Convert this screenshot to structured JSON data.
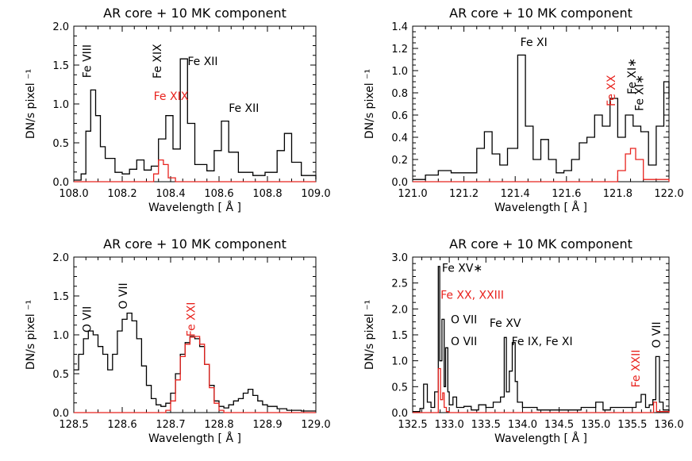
{
  "chart_data": [
    {
      "type": "line",
      "title": "AR core + 10 MK component",
      "xlabel": "Wavelength [ Å ]",
      "ylabel": "DN/s  pixel ⁻¹",
      "xlim": [
        108.0,
        109.0
      ],
      "ylim": [
        0.0,
        2.0
      ],
      "xticks": [
        108.0,
        108.2,
        108.4,
        108.6,
        108.8,
        109.0
      ],
      "xtick_labels": [
        "108.0",
        "108.2",
        "108.4",
        "108.6",
        "108.8",
        "109.0"
      ],
      "yticks": [
        0.0,
        0.5,
        1.0,
        1.5,
        2.0
      ],
      "ytick_labels": [
        "0.0",
        "0.5",
        "1.0",
        "1.5",
        "2.0"
      ],
      "series": [
        {
          "color": "#000000",
          "x": [
            108.0,
            108.03,
            108.05,
            108.07,
            108.09,
            108.11,
            108.13,
            108.17,
            108.2,
            108.23,
            108.26,
            108.29,
            108.32,
            108.35,
            108.38,
            108.41,
            108.44,
            108.47,
            108.5,
            108.55,
            108.58,
            108.61,
            108.64,
            108.68,
            108.74,
            108.79,
            108.84,
            108.87,
            108.9,
            108.94,
            109.0
          ],
          "y": [
            0.02,
            0.1,
            0.65,
            1.18,
            0.85,
            0.45,
            0.3,
            0.12,
            0.1,
            0.16,
            0.28,
            0.15,
            0.2,
            0.55,
            0.85,
            0.42,
            1.58,
            0.75,
            0.22,
            0.14,
            0.4,
            0.78,
            0.38,
            0.12,
            0.08,
            0.12,
            0.4,
            0.62,
            0.25,
            0.08,
            0.03
          ]
        },
        {
          "color": "#e8231e",
          "x": [
            108.0,
            108.3,
            108.33,
            108.35,
            108.37,
            108.39,
            108.42,
            109.0
          ],
          "y": [
            0.0,
            0.0,
            0.1,
            0.28,
            0.22,
            0.05,
            0.0,
            0.0
          ]
        }
      ],
      "annotations": [
        {
          "text": "Fe VIII",
          "x": 108.07,
          "y": 1.55,
          "rotate": true,
          "color": "#000000"
        },
        {
          "text": "Fe XIX",
          "x": 108.36,
          "y": 1.55,
          "rotate": true,
          "color": "#000000"
        },
        {
          "text": "Fe XII",
          "x": 108.47,
          "y": 1.5,
          "rotate": false,
          "color": "#000000"
        },
        {
          "text": "Fe XIX",
          "x": 108.33,
          "y": 1.05,
          "rotate": false,
          "color": "#e8231e"
        },
        {
          "text": "Fe XII",
          "x": 108.64,
          "y": 0.9,
          "rotate": false,
          "color": "#000000"
        }
      ]
    },
    {
      "type": "line",
      "title": "AR core + 10 MK component",
      "xlabel": "Wavelength [ Å ]",
      "ylabel": "DN/s  pixel ⁻¹",
      "xlim": [
        121.0,
        122.0
      ],
      "ylim": [
        0.0,
        1.4
      ],
      "xticks": [
        121.0,
        121.2,
        121.4,
        121.6,
        121.8,
        122.0
      ],
      "xtick_labels": [
        "121.0",
        "121.2",
        "121.4",
        "121.6",
        "121.8",
        "122.0"
      ],
      "yticks": [
        0.0,
        0.2,
        0.4,
        0.6,
        0.8,
        1.0,
        1.2,
        1.4
      ],
      "ytick_labels": [
        "0.0",
        "0.2",
        "0.4",
        "0.6",
        "0.8",
        "1.0",
        "1.2",
        "1.4"
      ],
      "series": [
        {
          "color": "#000000",
          "x": [
            121.0,
            121.05,
            121.1,
            121.15,
            121.2,
            121.25,
            121.28,
            121.31,
            121.34,
            121.37,
            121.41,
            121.44,
            121.47,
            121.5,
            121.53,
            121.56,
            121.59,
            121.62,
            121.65,
            121.68,
            121.71,
            121.74,
            121.77,
            121.8,
            121.83,
            121.86,
            121.89,
            121.92,
            121.95,
            121.98,
            122.0
          ],
          "y": [
            0.02,
            0.06,
            0.1,
            0.08,
            0.08,
            0.3,
            0.45,
            0.25,
            0.15,
            0.3,
            1.14,
            0.5,
            0.2,
            0.38,
            0.2,
            0.08,
            0.1,
            0.2,
            0.35,
            0.4,
            0.6,
            0.5,
            0.75,
            0.4,
            0.6,
            0.5,
            0.45,
            0.15,
            0.5,
            0.9,
            0.75
          ]
        },
        {
          "color": "#e8231e",
          "x": [
            121.0,
            121.77,
            121.8,
            121.83,
            121.85,
            121.87,
            121.9,
            122.0
          ],
          "y": [
            0.0,
            0.0,
            0.1,
            0.25,
            0.3,
            0.2,
            0.02,
            0.0
          ]
        }
      ],
      "annotations": [
        {
          "text": "Fe XI",
          "x": 121.42,
          "y": 1.22,
          "rotate": false,
          "color": "#000000"
        },
        {
          "text": "Fe XI∗",
          "x": 121.87,
          "y": 0.95,
          "rotate": true,
          "color": "#000000"
        },
        {
          "text": "Fe XI∗",
          "x": 121.9,
          "y": 0.8,
          "rotate": true,
          "color": "#000000"
        },
        {
          "text": "Fe XX",
          "x": 121.79,
          "y": 0.82,
          "rotate": true,
          "color": "#e8231e"
        }
      ]
    },
    {
      "type": "line",
      "title": "AR core + 10 MK component",
      "xlabel": "Wavelength [ Å ]",
      "ylabel": "DN/s  pixel ⁻¹",
      "xlim": [
        128.5,
        129.0
      ],
      "ylim": [
        0.0,
        2.0
      ],
      "xticks": [
        128.5,
        128.6,
        128.7,
        128.8,
        128.9,
        129.0
      ],
      "xtick_labels": [
        "128.5",
        "128.6",
        "128.7",
        "128.8",
        "128.9",
        "129.0"
      ],
      "yticks": [
        0.0,
        0.5,
        1.0,
        1.5,
        2.0
      ],
      "ytick_labels": [
        "0.0",
        "0.5",
        "1.0",
        "1.5",
        "2.0"
      ],
      "series": [
        {
          "color": "#000000",
          "x": [
            128.5,
            128.51,
            128.52,
            128.53,
            128.54,
            128.55,
            128.56,
            128.57,
            128.58,
            128.59,
            128.6,
            128.61,
            128.62,
            128.63,
            128.64,
            128.65,
            128.66,
            128.67,
            128.68,
            128.69,
            128.7,
            128.71,
            128.72,
            128.73,
            128.74,
            128.75,
            128.76,
            128.77,
            128.78,
            128.79,
            128.8,
            128.81,
            128.82,
            128.83,
            128.84,
            128.85,
            128.86,
            128.87,
            128.88,
            128.89,
            128.9,
            128.92,
            128.94,
            128.97,
            129.0
          ],
          "y": [
            0.55,
            0.75,
            0.95,
            1.05,
            1.0,
            0.85,
            0.75,
            0.55,
            0.75,
            1.05,
            1.2,
            1.28,
            1.18,
            0.95,
            0.6,
            0.35,
            0.18,
            0.1,
            0.08,
            0.12,
            0.25,
            0.5,
            0.75,
            0.9,
            0.98,
            0.95,
            0.85,
            0.62,
            0.35,
            0.15,
            0.08,
            0.06,
            0.1,
            0.15,
            0.18,
            0.25,
            0.3,
            0.22,
            0.15,
            0.1,
            0.08,
            0.05,
            0.03,
            0.02,
            0.02
          ]
        },
        {
          "color": "#e8231e",
          "x": [
            128.5,
            128.68,
            128.69,
            128.7,
            128.71,
            128.72,
            128.73,
            128.74,
            128.75,
            128.76,
            128.77,
            128.78,
            128.79,
            128.8,
            128.81,
            129.0
          ],
          "y": [
            0.0,
            0.0,
            0.03,
            0.15,
            0.42,
            0.72,
            0.88,
            0.97,
            0.98,
            0.88,
            0.62,
            0.32,
            0.12,
            0.03,
            0.0,
            0.0
          ]
        }
      ],
      "annotations": [
        {
          "text": "O VII",
          "x": 128.535,
          "y": 1.2,
          "rotate": true,
          "color": "#000000"
        },
        {
          "text": "O VII",
          "x": 128.61,
          "y": 1.5,
          "rotate": true,
          "color": "#000000"
        },
        {
          "text": "Fe XXI",
          "x": 128.75,
          "y": 1.2,
          "rotate": true,
          "color": "#e8231e"
        }
      ]
    },
    {
      "type": "line",
      "title": "AR core + 10 MK component",
      "xlabel": "Wavelength [ Å ]",
      "ylabel": "DN/s  pixel ⁻¹",
      "xlim": [
        132.5,
        136.0
      ],
      "ylim": [
        0.0,
        3.0
      ],
      "xticks": [
        132.5,
        133.0,
        133.5,
        134.0,
        134.5,
        135.0,
        135.5,
        136.0
      ],
      "xtick_labels": [
        "132.5",
        "133.0",
        "133.5",
        "134.0",
        "134.5",
        "135.0",
        "135.5",
        "136.0"
      ],
      "yticks": [
        0.0,
        0.5,
        1.0,
        1.5,
        2.0,
        2.5,
        3.0
      ],
      "ytick_labels": [
        "0.0",
        "0.5",
        "1.0",
        "1.5",
        "2.0",
        "2.5",
        "3.0"
      ],
      "series": [
        {
          "color": "#000000",
          "x": [
            132.5,
            132.6,
            132.65,
            132.7,
            132.75,
            132.8,
            132.85,
            132.87,
            132.9,
            132.93,
            132.95,
            132.98,
            133.0,
            133.05,
            133.1,
            133.2,
            133.3,
            133.4,
            133.5,
            133.6,
            133.7,
            133.75,
            133.78,
            133.82,
            133.86,
            133.9,
            133.93,
            134.0,
            134.2,
            134.5,
            134.8,
            135.0,
            135.1,
            135.2,
            135.4,
            135.55,
            135.62,
            135.68,
            135.73,
            135.78,
            135.82,
            135.87,
            135.92,
            136.0
          ],
          "y": [
            0.02,
            0.08,
            0.55,
            0.2,
            0.1,
            0.4,
            2.82,
            1.0,
            1.8,
            0.5,
            1.25,
            0.4,
            0.15,
            0.3,
            0.1,
            0.12,
            0.05,
            0.15,
            0.1,
            0.2,
            0.3,
            1.45,
            0.4,
            0.8,
            1.35,
            0.6,
            0.2,
            0.1,
            0.05,
            0.05,
            0.1,
            0.2,
            0.05,
            0.1,
            0.1,
            0.2,
            0.35,
            0.1,
            0.15,
            0.25,
            1.08,
            0.2,
            0.05,
            0.02
          ]
        },
        {
          "color": "#e8231e",
          "x": [
            132.5,
            132.8,
            132.85,
            132.88,
            132.91,
            132.93,
            132.96,
            133.0,
            135.75,
            135.79,
            135.83,
            136.0
          ],
          "y": [
            0.0,
            0.0,
            0.85,
            0.25,
            0.38,
            0.1,
            0.02,
            0.0,
            0.0,
            0.2,
            0.02,
            0.0
          ]
        }
      ],
      "annotations": [
        {
          "text": "Fe XV∗",
          "x": 132.9,
          "y": 2.72,
          "rotate": false,
          "color": "#000000"
        },
        {
          "text": "Fe XX, XXIII",
          "x": 132.88,
          "y": 2.2,
          "rotate": false,
          "color": "#e8231e"
        },
        {
          "text": "O VII",
          "x": 133.02,
          "y": 1.72,
          "rotate": false,
          "color": "#000000"
        },
        {
          "text": "O VII",
          "x": 133.02,
          "y": 1.3,
          "rotate": false,
          "color": "#000000"
        },
        {
          "text": "Fe XV",
          "x": 133.55,
          "y": 1.65,
          "rotate": false,
          "color": "#000000"
        },
        {
          "text": "Fe IX, Fe XI",
          "x": 133.85,
          "y": 1.3,
          "rotate": false,
          "color": "#000000"
        },
        {
          "text": "Fe XXII",
          "x": 135.6,
          "y": 0.85,
          "rotate": true,
          "color": "#e8231e"
        },
        {
          "text": "O VII",
          "x": 135.88,
          "y": 1.5,
          "rotate": true,
          "color": "#000000"
        }
      ]
    }
  ]
}
